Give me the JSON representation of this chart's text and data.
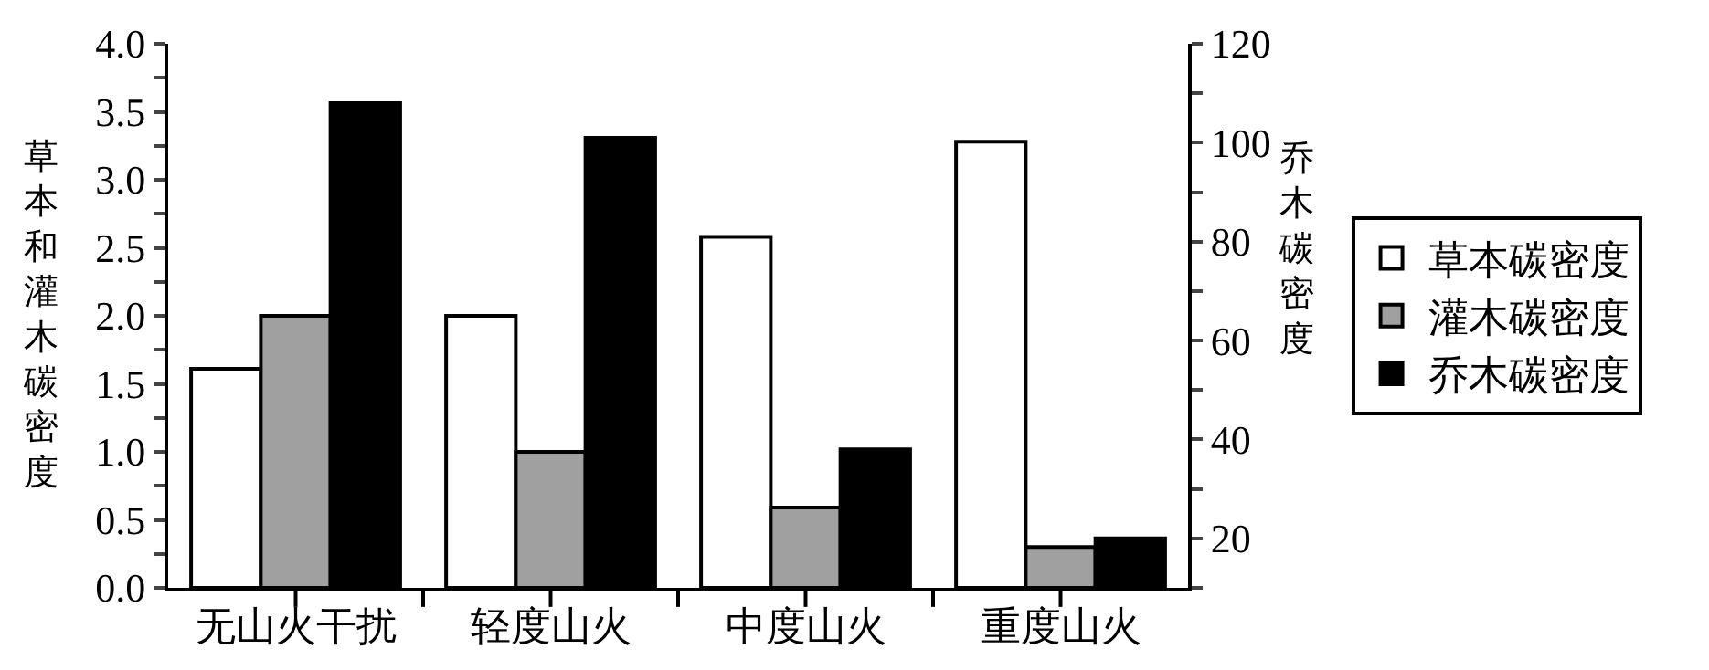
{
  "chart_data": {
    "type": "bar",
    "categories": [
      "无山火干扰",
      "轻度山火",
      "中度山火",
      "重度山火"
    ],
    "ylabel": "草本和灌木碳密度",
    "y2label": "乔木碳密度",
    "series": [
      {
        "name": "草本碳密度",
        "color": "#ffffff",
        "values": [
          1.61,
          2.0,
          2.58,
          3.28
        ]
      },
      {
        "name": "灌木碳密度",
        "color": "#a0a0a0",
        "values": [
          2.0,
          1.0,
          0.59,
          0.3
        ]
      },
      {
        "name": "乔木碳密度",
        "color": "#000000",
        "axis": "y2",
        "values": [
          108,
          101,
          38,
          20
        ]
      }
    ],
    "ylim": [
      0,
      4.0
    ],
    "yticks": [
      {
        "value": 0,
        "label": "0.0"
      },
      {
        "value": 0.25,
        "label": null
      },
      {
        "value": 0.5,
        "label": "0.5"
      },
      {
        "value": 0.75,
        "label": null
      },
      {
        "value": 1.0,
        "label": "1.0"
      },
      {
        "value": 1.25,
        "label": null
      },
      {
        "value": 1.5,
        "label": "1.5"
      },
      {
        "value": 1.75,
        "label": null
      },
      {
        "value": 2.0,
        "label": "2.0"
      },
      {
        "value": 2.25,
        "label": null
      },
      {
        "value": 2.5,
        "label": "2.5"
      },
      {
        "value": 2.75,
        "label": null
      },
      {
        "value": 3.0,
        "label": "3.0"
      },
      {
        "value": 3.25,
        "label": null
      },
      {
        "value": 3.5,
        "label": "3.5"
      },
      {
        "value": 3.75,
        "label": null
      },
      {
        "value": 4.0,
        "label": "4.0"
      }
    ],
    "y2lim": [
      10,
      120
    ],
    "y2ticks": [
      {
        "value": 10,
        "label": null
      },
      20,
      {
        "value": 30,
        "label": null
      },
      40,
      {
        "value": 50,
        "label": null
      },
      60,
      {
        "value": 70,
        "label": null
      },
      80,
      {
        "value": 90,
        "label": null
      },
      100,
      {
        "value": 110,
        "label": null
      },
      120
    ],
    "legend": "right"
  }
}
